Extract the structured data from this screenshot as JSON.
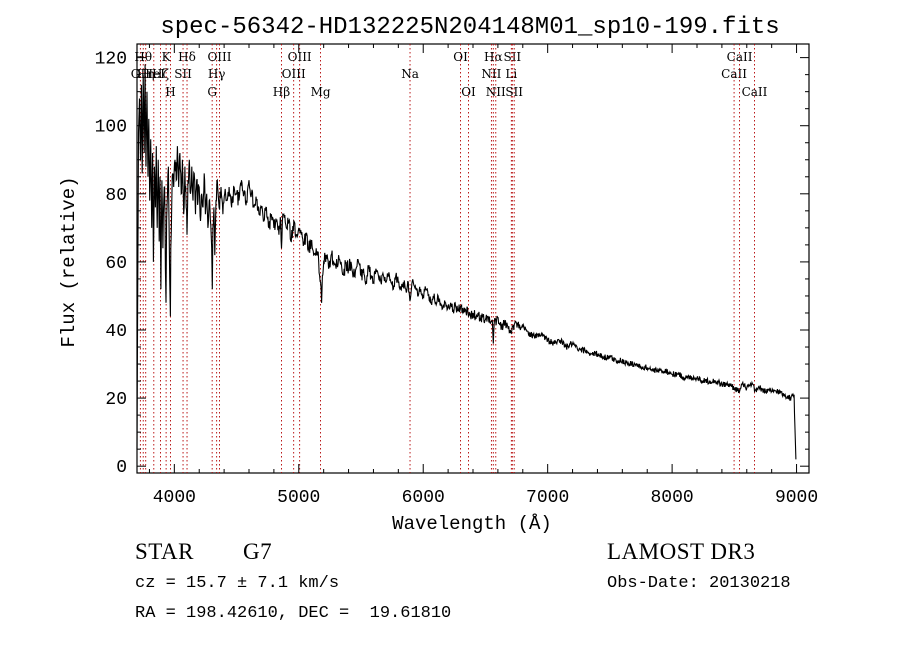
{
  "chart_data": {
    "type": "line",
    "title": "spec-56342-HD132225N204148M01_sp10-199.fits",
    "xlabel": "Wavelength (Å)",
    "ylabel": "Flux (relative)",
    "xlim": [
      3700,
      9100
    ],
    "ylim": [
      -2,
      124
    ],
    "x_ticks": [
      4000,
      5000,
      6000,
      7000,
      8000,
      9000
    ],
    "y_ticks": [
      0,
      20,
      40,
      60,
      80,
      100,
      120
    ],
    "series": [
      {
        "name": "spectrum",
        "points": [
          [
            3700,
            5
          ],
          [
            3705,
            45
          ],
          [
            3712,
            98
          ],
          [
            3720,
            108
          ],
          [
            3728,
            90
          ],
          [
            3735,
            112
          ],
          [
            3742,
            86
          ],
          [
            3750,
            115
          ],
          [
            3758,
            92
          ],
          [
            3765,
            118
          ],
          [
            3772,
            88
          ],
          [
            3780,
            110
          ],
          [
            3788,
            85
          ],
          [
            3795,
            102
          ],
          [
            3802,
            78
          ],
          [
            3810,
            96
          ],
          [
            3818,
            70
          ],
          [
            3825,
            92
          ],
          [
            3832,
            60
          ],
          [
            3840,
            88
          ],
          [
            3848,
            76
          ],
          [
            3855,
            94
          ],
          [
            3862,
            70
          ],
          [
            3870,
            90
          ],
          [
            3878,
            66
          ],
          [
            3885,
            85
          ],
          [
            3892,
            52
          ],
          [
            3900,
            84
          ],
          [
            3908,
            64
          ],
          [
            3915,
            78
          ],
          [
            3922,
            82
          ],
          [
            3928,
            58
          ],
          [
            3933,
            48
          ],
          [
            3938,
            72
          ],
          [
            3945,
            80
          ],
          [
            3952,
            88
          ],
          [
            3958,
            70
          ],
          [
            3963,
            55
          ],
          [
            3968,
            44
          ],
          [
            3972,
            64
          ],
          [
            3980,
            78
          ],
          [
            3988,
            86
          ],
          [
            3995,
            82
          ],
          [
            4005,
            90
          ],
          [
            4015,
            84
          ],
          [
            4025,
            94
          ],
          [
            4035,
            82
          ],
          [
            4045,
            92
          ],
          [
            4055,
            80
          ],
          [
            4065,
            90
          ],
          [
            4075,
            74
          ],
          [
            4085,
            88
          ],
          [
            4095,
            76
          ],
          [
            4102,
            68
          ],
          [
            4110,
            84
          ],
          [
            4120,
            90
          ],
          [
            4130,
            80
          ],
          [
            4140,
            88
          ],
          [
            4150,
            78
          ],
          [
            4160,
            86
          ],
          [
            4170,
            74
          ],
          [
            4180,
            84
          ],
          [
            4190,
            78
          ],
          [
            4200,
            82
          ],
          [
            4210,
            72
          ],
          [
            4220,
            80
          ],
          [
            4230,
            76
          ],
          [
            4240,
            86
          ],
          [
            4250,
            74
          ],
          [
            4260,
            80
          ],
          [
            4270,
            70
          ],
          [
            4280,
            78
          ],
          [
            4290,
            72
          ],
          [
            4300,
            64
          ],
          [
            4305,
            52
          ],
          [
            4310,
            70
          ],
          [
            4318,
            76
          ],
          [
            4325,
            62
          ],
          [
            4335,
            78
          ],
          [
            4345,
            84
          ],
          [
            4360,
            76
          ],
          [
            4375,
            82
          ],
          [
            4390,
            74
          ],
          [
            4405,
            80
          ],
          [
            4420,
            78
          ],
          [
            4440,
            82
          ],
          [
            4460,
            76
          ],
          [
            4480,
            82
          ],
          [
            4500,
            80
          ],
          [
            4520,
            78
          ],
          [
            4540,
            84
          ],
          [
            4560,
            80
          ],
          [
            4580,
            78
          ],
          [
            4600,
            84
          ],
          [
            4620,
            80
          ],
          [
            4640,
            76
          ],
          [
            4660,
            78
          ],
          [
            4680,
            74
          ],
          [
            4700,
            76
          ],
          [
            4720,
            72
          ],
          [
            4740,
            76
          ],
          [
            4760,
            70
          ],
          [
            4780,
            74
          ],
          [
            4800,
            70
          ],
          [
            4820,
            72
          ],
          [
            4840,
            68
          ],
          [
            4855,
            72
          ],
          [
            4861,
            64
          ],
          [
            4868,
            72
          ],
          [
            4880,
            74
          ],
          [
            4900,
            70
          ],
          [
            4920,
            72
          ],
          [
            4940,
            66
          ],
          [
            4960,
            72
          ],
          [
            4980,
            68
          ],
          [
            5000,
            70
          ],
          [
            5020,
            68
          ],
          [
            5040,
            66
          ],
          [
            5060,
            68
          ],
          [
            5080,
            64
          ],
          [
            5100,
            66
          ],
          [
            5120,
            62
          ],
          [
            5140,
            64
          ],
          [
            5160,
            60
          ],
          [
            5167,
            56
          ],
          [
            5175,
            54
          ],
          [
            5183,
            48
          ],
          [
            5190,
            56
          ],
          [
            5200,
            60
          ],
          [
            5220,
            62
          ],
          [
            5240,
            58
          ],
          [
            5260,
            62
          ],
          [
            5280,
            60
          ],
          [
            5300,
            58
          ],
          [
            5320,
            62
          ],
          [
            5340,
            60
          ],
          [
            5360,
            56
          ],
          [
            5380,
            60
          ],
          [
            5400,
            58
          ],
          [
            5420,
            60
          ],
          [
            5440,
            56
          ],
          [
            5460,
            58
          ],
          [
            5480,
            60
          ],
          [
            5500,
            56
          ],
          [
            5520,
            58
          ],
          [
            5540,
            54
          ],
          [
            5560,
            58
          ],
          [
            5580,
            56
          ],
          [
            5600,
            54
          ],
          [
            5620,
            58
          ],
          [
            5640,
            56
          ],
          [
            5660,
            54
          ],
          [
            5680,
            56
          ],
          [
            5700,
            54
          ],
          [
            5720,
            56
          ],
          [
            5740,
            54
          ],
          [
            5760,
            52
          ],
          [
            5780,
            56
          ],
          [
            5800,
            54
          ],
          [
            5820,
            52
          ],
          [
            5840,
            54
          ],
          [
            5860,
            52
          ],
          [
            5880,
            54
          ],
          [
            5890,
            50
          ],
          [
            5896,
            49
          ],
          [
            5905,
            52
          ],
          [
            5920,
            54
          ],
          [
            5940,
            52
          ],
          [
            5960,
            50
          ],
          [
            5980,
            52
          ],
          [
            6000,
            50
          ],
          [
            6020,
            52
          ],
          [
            6040,
            50
          ],
          [
            6060,
            48
          ],
          [
            6080,
            50
          ],
          [
            6100,
            48
          ],
          [
            6120,
            50
          ],
          [
            6140,
            48
          ],
          [
            6160,
            47
          ],
          [
            6180,
            48
          ],
          [
            6200,
            47
          ],
          [
            6220,
            48
          ],
          [
            6240,
            46
          ],
          [
            6260,
            47
          ],
          [
            6280,
            46
          ],
          [
            6300,
            47
          ],
          [
            6320,
            45
          ],
          [
            6340,
            46
          ],
          [
            6360,
            45
          ],
          [
            6380,
            44
          ],
          [
            6400,
            45
          ],
          [
            6420,
            44
          ],
          [
            6440,
            45
          ],
          [
            6460,
            43
          ],
          [
            6480,
            44
          ],
          [
            6500,
            43
          ],
          [
            6520,
            44
          ],
          [
            6540,
            42
          ],
          [
            6555,
            43
          ],
          [
            6563,
            36
          ],
          [
            6570,
            42
          ],
          [
            6590,
            43
          ],
          [
            6610,
            42
          ],
          [
            6630,
            41
          ],
          [
            6650,
            42
          ],
          [
            6680,
            41
          ],
          [
            6700,
            40
          ],
          [
            6720,
            41
          ],
          [
            6750,
            42
          ],
          [
            6780,
            40
          ],
          [
            6800,
            41
          ],
          [
            6850,
            39
          ],
          [
            6900,
            38
          ],
          [
            6950,
            39
          ],
          [
            7000,
            37
          ],
          [
            7050,
            36
          ],
          [
            7100,
            37
          ],
          [
            7150,
            35
          ],
          [
            7200,
            36
          ],
          [
            7250,
            34
          ],
          [
            7300,
            34
          ],
          [
            7350,
            33
          ],
          [
            7400,
            33
          ],
          [
            7450,
            32
          ],
          [
            7500,
            32
          ],
          [
            7550,
            31
          ],
          [
            7600,
            31
          ],
          [
            7650,
            30
          ],
          [
            7700,
            30
          ],
          [
            7750,
            29
          ],
          [
            7800,
            29
          ],
          [
            7850,
            28
          ],
          [
            7900,
            28
          ],
          [
            7950,
            28
          ],
          [
            8000,
            27
          ],
          [
            8050,
            27
          ],
          [
            8100,
            26
          ],
          [
            8150,
            26
          ],
          [
            8200,
            26
          ],
          [
            8250,
            25
          ],
          [
            8300,
            25
          ],
          [
            8350,
            25
          ],
          [
            8400,
            24
          ],
          [
            8450,
            24
          ],
          [
            8500,
            23
          ],
          [
            8542,
            22
          ],
          [
            8560,
            24
          ],
          [
            8600,
            23
          ],
          [
            8650,
            24
          ],
          [
            8662,
            22
          ],
          [
            8700,
            23
          ],
          [
            8750,
            22
          ],
          [
            8800,
            22
          ],
          [
            8850,
            22
          ],
          [
            8900,
            21
          ],
          [
            8950,
            20
          ],
          [
            8980,
            21
          ],
          [
            8995,
            2
          ]
        ]
      }
    ],
    "lines": [
      {
        "x": 3727,
        "label": "OII",
        "row": 2
      },
      {
        "x": 3750,
        "label": "Hθ",
        "row": 1
      },
      {
        "x": 3770,
        "label": "Hη",
        "row": 2
      },
      {
        "x": 3835,
        "label": "HeI",
        "row": 2
      },
      {
        "x": 3889,
        "label": "Hζ",
        "row": 2
      },
      {
        "x": 3934,
        "label": "K",
        "row": 1
      },
      {
        "x": 3969,
        "label": "H",
        "row": 3
      },
      {
        "x": 4070,
        "label": "SII",
        "row": 2
      },
      {
        "x": 4102,
        "label": "Hδ",
        "row": 1
      },
      {
        "x": 4304,
        "label": "G",
        "row": 3
      },
      {
        "x": 4340,
        "label": "Hγ",
        "row": 2
      },
      {
        "x": 4363,
        "label": "OIII",
        "row": 1
      },
      {
        "x": 4861,
        "label": "Hβ",
        "row": 3
      },
      {
        "x": 4959,
        "label": "OIII",
        "row": 2
      },
      {
        "x": 5007,
        "label": "OIII",
        "row": 1
      },
      {
        "x": 5175,
        "label": "Mg",
        "row": 3
      },
      {
        "x": 5894,
        "label": "Na",
        "row": 2
      },
      {
        "x": 6300,
        "label": "OI",
        "row": 1
      },
      {
        "x": 6364,
        "label": "OI",
        "row": 3
      },
      {
        "x": 6548,
        "label": "NII",
        "row": 2
      },
      {
        "x": 6563,
        "label": "Hα",
        "row": 1
      },
      {
        "x": 6583,
        "label": "NII",
        "row": 3
      },
      {
        "x": 6708,
        "label": "Li",
        "row": 2
      },
      {
        "x": 6716,
        "label": "SII",
        "row": 1
      },
      {
        "x": 6731,
        "label": "SII",
        "row": 3
      },
      {
        "x": 8498,
        "label": "CaII",
        "row": 2
      },
      {
        "x": 8542,
        "label": "CaII",
        "row": 1
      },
      {
        "x": 8662,
        "label": "CaII",
        "row": 3
      }
    ]
  },
  "footer": {
    "object_class": "STAR",
    "subclass": "G7",
    "survey": "LAMOST DR3",
    "cz": "cz = 15.7 ± 7.1 km/s",
    "obs_date": "Obs-Date: 20130218",
    "coords": "RA = 198.42610, DEC =  19.61810"
  }
}
